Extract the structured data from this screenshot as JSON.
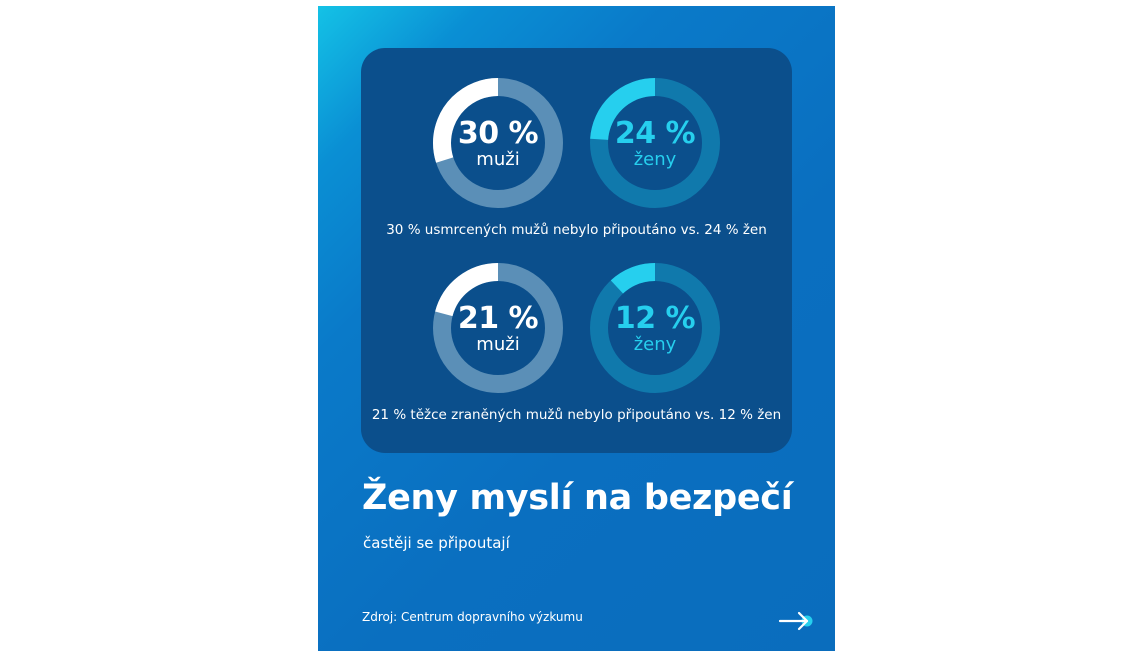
{
  "donuts": [
    {
      "percent": 30,
      "pct_text": "30 %",
      "label": "muži",
      "theme": "white"
    },
    {
      "percent": 24,
      "pct_text": "24 %",
      "label": "ženy",
      "theme": "cyan"
    },
    {
      "percent": 21,
      "pct_text": "21 %",
      "label": "muži",
      "theme": "white"
    },
    {
      "percent": 12,
      "pct_text": "12 %",
      "label": "ženy",
      "theme": "cyan"
    }
  ],
  "captions": [
    "30 % usmrcených mužů nebylo připoutáno vs. 24 % žen",
    "21 % těžce zraněných mužů nebylo připoutáno vs. 12 % žen"
  ],
  "title": "Ženy myslí na bezpečí",
  "subtitle": "častěji se připoutají",
  "source": "Zdroj: Centrum dopravního výzkumu",
  "colors": {
    "card_gradient_start": "#14c2e6",
    "card_gradient_end": "#0a6dbd",
    "panel": "#0b4f8c",
    "men_track": "#5b8fb7",
    "men_fill": "#ffffff",
    "women_track": "#1079ac",
    "women_fill": "#26cfee"
  },
  "icons": {
    "next": "arrow-right-icon"
  }
}
